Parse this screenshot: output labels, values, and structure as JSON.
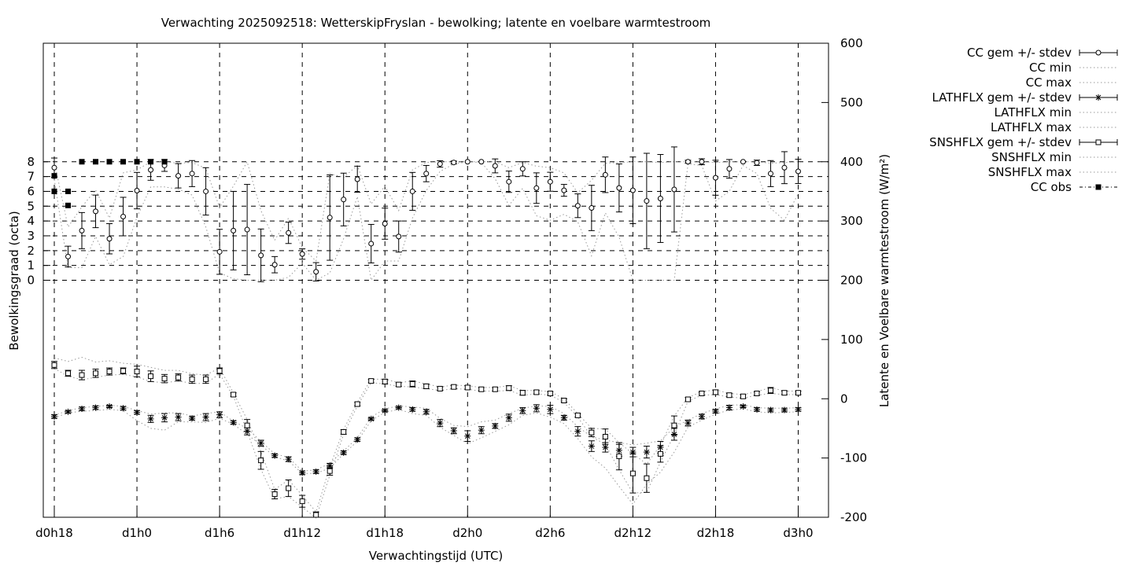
{
  "chart_data": {
    "type": "scatter",
    "title": "Verwachting 2025092518: WetterskipFryslan - bewolking; latente en voelbare warmtestroom",
    "xlabel": "Verwachtingstijd (UTC)",
    "ylabel_left": "Bewolkingsgraad (octa)",
    "ylabel_right": "Latente en Voelbare warmtestroom (W/m²)",
    "x_unit": "hours since d0h00",
    "xlim": [
      17.2,
      74.2
    ],
    "y_left_ticks": [
      0,
      1,
      2,
      3,
      4,
      5,
      6,
      7,
      8
    ],
    "y_right_lim": [
      -200,
      600
    ],
    "y_right_ticks": [
      -200,
      -100,
      0,
      100,
      200,
      300,
      400,
      500,
      600
    ],
    "x_ticks": [
      {
        "x": 18,
        "label": "d0h18"
      },
      {
        "x": 24,
        "label": "d1h0"
      },
      {
        "x": 30,
        "label": "d1h6"
      },
      {
        "x": 36,
        "label": "d1h12"
      },
      {
        "x": 42,
        "label": "d1h18"
      },
      {
        "x": 48,
        "label": "d2h0"
      },
      {
        "x": 54,
        "label": "d2h6"
      },
      {
        "x": 60,
        "label": "d2h12"
      },
      {
        "x": 66,
        "label": "d2h18"
      },
      {
        "x": 72,
        "label": "d3h0"
      }
    ],
    "grid": true,
    "legend_position": "right",
    "legend": [
      "CC gem +/- stdev",
      "CC min",
      "CC max",
      "LATHFLX gem +/- stdev",
      "LATHFLX min",
      "LATHFLX max",
      "SNSHFLX gem +/- stdev",
      "SNSHFLX min",
      "SNSHFLX max",
      "CC obs"
    ],
    "cc_mean": {
      "x": [
        18,
        19,
        20,
        21,
        22,
        23,
        24,
        25,
        26,
        27,
        28,
        29,
        30,
        31,
        32,
        33,
        34,
        35,
        36,
        37,
        38,
        39,
        40,
        41,
        42,
        43,
        44,
        45,
        46,
        47,
        48,
        49,
        50,
        51,
        52,
        53,
        54,
        55,
        56,
        57,
        58,
        59,
        60,
        61,
        62,
        63,
        64,
        65,
        66,
        67,
        68,
        69,
        70,
        71,
        72
      ],
      "y": [
        7.6,
        1.6,
        3.35,
        4.65,
        2.8,
        4.3,
        6.05,
        7.45,
        7.75,
        7.05,
        7.2,
        6.0,
        1.92,
        3.35,
        3.42,
        1.68,
        1.05,
        3.2,
        1.77,
        0.57,
        4.23,
        5.45,
        6.82,
        2.47,
        3.82,
        2.95,
        6.0,
        7.2,
        7.85,
        7.95,
        8.0,
        8.0,
        7.72,
        6.65,
        7.52,
        6.22,
        6.65,
        6.07,
        5.03,
        4.88,
        7.12,
        6.23,
        6.07,
        5.35,
        5.52,
        6.13,
        8.0,
        8.0,
        6.92,
        7.52,
        8.0,
        7.93,
        7.2,
        7.6,
        7.35
      ],
      "err": [
        0.65,
        0.7,
        1.22,
        1.1,
        1.02,
        1.3,
        1.23,
        0.7,
        0.4,
        0.82,
        0.88,
        1.6,
        1.52,
        2.65,
        3.05,
        1.78,
        0.55,
        0.72,
        0.35,
        0.62,
        2.88,
        1.78,
        0.88,
        1.3,
        1.05,
        1.05,
        1.28,
        0.55,
        0.22,
        0.1,
        0.0,
        0.0,
        0.47,
        0.72,
        0.48,
        1.03,
        0.64,
        0.4,
        0.8,
        1.53,
        1.2,
        1.62,
        2.25,
        3.22,
        2.97,
        2.87,
        0.1,
        0.2,
        1.18,
        0.63,
        0.0,
        0.18,
        0.88,
        1.08,
        0.82
      ]
    },
    "cc_min": [
      6.8,
      0.85,
      0.85,
      2.95,
      1.05,
      1.6,
      4.25,
      6.3,
      6.3,
      6.15,
      5.75,
      3.6,
      0.5,
      0.1,
      0.0,
      0.0,
      0.0,
      0.2,
      1.15,
      0.0,
      0.5,
      2.8,
      5.65,
      0.0,
      1.3,
      1.3,
      4.2,
      6.05,
      7.35,
      7.85,
      8.0,
      7.95,
      6.85,
      5.05,
      6.2,
      4.35,
      4.05,
      4.45,
      3.95,
      1.65,
      4.55,
      2.9,
      0.0,
      0.0,
      0.0,
      0.0,
      7.85,
      7.75,
      5.35,
      6.0,
      7.75,
      7.2,
      4.85,
      4.05,
      5.85
    ],
    "cc_max": [
      8.0,
      3.6,
      4.95,
      6.1,
      4.2,
      7.25,
      7.45,
      8.0,
      8.0,
      7.9,
      7.95,
      7.55,
      4.9,
      6.35,
      8.0,
      4.7,
      2.7,
      4.2,
      2.2,
      1.3,
      7.2,
      6.95,
      7.75,
      5.15,
      6.35,
      4.7,
      7.45,
      7.95,
      8.0,
      8.0,
      8.0,
      8.0,
      8.0,
      7.6,
      7.95,
      7.7,
      7.6,
      7.25,
      5.9,
      6.75,
      7.9,
      7.95,
      8.0,
      8.0,
      7.95,
      8.0,
      8.0,
      8.0,
      7.95,
      8.0,
      8.0,
      8.0,
      7.9,
      7.95,
      8.0
    ],
    "cc_obs": {
      "x": [
        18,
        18,
        18,
        19,
        19,
        20,
        21,
        22,
        23,
        24,
        25,
        26
      ],
      "y": [
        7.05,
        6.0,
        6.0,
        6.0,
        5.05,
        8.0,
        8.0,
        8.0,
        8.0,
        8.0,
        8.0,
        8.0
      ]
    },
    "lathflx_mean": {
      "x": [
        18,
        19,
        20,
        21,
        22,
        23,
        24,
        25,
        26,
        27,
        28,
        29,
        30,
        31,
        32,
        33,
        34,
        35,
        36,
        37,
        38,
        39,
        40,
        41,
        42,
        43,
        44,
        45,
        46,
        47,
        48,
        49,
        50,
        51,
        52,
        53,
        54,
        55,
        56,
        57,
        58,
        59,
        60,
        61,
        62,
        63,
        64,
        65,
        66,
        67,
        68,
        69,
        70,
        71,
        72
      ],
      "y": [
        -30,
        -22,
        -17,
        -15,
        -13,
        -16,
        -23,
        -34,
        -32,
        -31,
        -33,
        -31,
        -27,
        -40,
        -55,
        -75,
        -96,
        -102,
        -125,
        -123,
        -113,
        -91,
        -69,
        -34,
        -20,
        -15,
        -18,
        -22,
        -41,
        -54,
        -63,
        -53,
        -46,
        -32,
        -20,
        -16,
        -18,
        -32,
        -55,
        -80,
        -82,
        -87,
        -90,
        -90,
        -82,
        -60,
        -41,
        -30,
        -21,
        -15,
        -13,
        -18,
        -19,
        -19,
        -18
      ],
      "err": [
        3,
        2,
        3,
        3,
        2,
        3,
        3,
        6,
        7,
        6,
        3,
        6,
        5,
        3,
        6,
        5,
        3,
        4,
        3,
        3,
        4,
        3,
        3,
        2,
        2,
        2,
        3,
        4,
        6,
        5,
        9,
        6,
        4,
        6,
        5,
        6,
        7,
        4,
        8,
        9,
        8,
        10,
        8,
        10,
        10,
        10,
        5,
        4,
        3,
        4,
        2,
        3,
        3,
        3,
        3
      ]
    },
    "lathflx_min": [
      -32,
      -24,
      -21,
      -20,
      -18,
      -20,
      -37,
      -50,
      -53,
      -39,
      -39,
      -40,
      -33,
      -43,
      -60,
      -78,
      -98,
      -105,
      -126,
      -126,
      -117,
      -93,
      -72,
      -37,
      -23,
      -18,
      -25,
      -28,
      -48,
      -62,
      -76,
      -66,
      -55,
      -44,
      -28,
      -24,
      -31,
      -42,
      -67,
      -98,
      -117,
      -148,
      -178,
      -144,
      -124,
      -90,
      -48,
      -36,
      -26,
      -19,
      -17,
      -22,
      -24,
      -23,
      -22
    ],
    "lathflx_max": [
      -28,
      -20,
      -15,
      -13,
      -11,
      -13,
      -20,
      -26,
      -24,
      -24,
      -29,
      -25,
      -22,
      -38,
      -50,
      -72,
      -93,
      -99,
      -122,
      -120,
      -109,
      -88,
      -66,
      -31,
      -17,
      -12,
      -14,
      -16,
      -33,
      -45,
      -47,
      -39,
      -36,
      -25,
      -16,
      -12,
      -13,
      -25,
      -47,
      -64,
      -70,
      -74,
      -78,
      -75,
      -71,
      -48,
      -36,
      -25,
      -17,
      -11,
      -10,
      -15,
      -16,
      -16,
      -15
    ],
    "snshflx_mean": {
      "x": [
        18,
        19,
        20,
        21,
        22,
        23,
        24,
        25,
        26,
        27,
        28,
        29,
        30,
        31,
        32,
        33,
        34,
        35,
        36,
        37,
        38,
        39,
        40,
        41,
        42,
        43,
        44,
        45,
        46,
        47,
        48,
        49,
        50,
        51,
        52,
        53,
        54,
        55,
        56,
        57,
        58,
        59,
        60,
        61,
        62,
        63,
        64,
        65,
        66,
        67,
        68,
        69,
        70,
        71,
        72
      ],
      "y": [
        57,
        43,
        40,
        43,
        46,
        47,
        46,
        38,
        34,
        36,
        33,
        33,
        47,
        7,
        -45,
        -104,
        -161,
        -151,
        -173,
        -196,
        -122,
        -56,
        -9,
        30,
        29,
        24,
        25,
        21,
        17,
        20,
        19,
        16,
        16,
        18,
        10,
        11,
        9,
        -3,
        -28,
        -57,
        -64,
        -97,
        -126,
        -134,
        -93,
        -45,
        -1,
        9,
        11,
        6,
        4,
        9,
        14,
        10,
        10
      ],
      "err": [
        6,
        5,
        8,
        7,
        6,
        5,
        9,
        9,
        7,
        6,
        7,
        7,
        5,
        3,
        10,
        15,
        8,
        14,
        10,
        5,
        7,
        4,
        3,
        3,
        4,
        3,
        5,
        4,
        3,
        3,
        3,
        3,
        3,
        4,
        4,
        3,
        3,
        3,
        3,
        7,
        13,
        23,
        33,
        24,
        14,
        16,
        3,
        3,
        4,
        3,
        3,
        3,
        5,
        3,
        3
      ]
    },
    "snshflx_min": [
      51,
      38,
      32,
      36,
      40,
      41,
      37,
      29,
      27,
      30,
      26,
      26,
      42,
      4,
      -55,
      -119,
      -169,
      -165,
      -183,
      -201,
      -129,
      -60,
      -12,
      27,
      25,
      21,
      20,
      17,
      14,
      17,
      16,
      13,
      13,
      14,
      6,
      8,
      6,
      -6,
      -31,
      -64,
      -77,
      -120,
      -159,
      -158,
      -107,
      -61,
      -4,
      6,
      7,
      3,
      1,
      6,
      9,
      7,
      7
    ],
    "snshflx_max": [
      69,
      63,
      70,
      62,
      64,
      60,
      58,
      53,
      48,
      48,
      42,
      40,
      52,
      10,
      -35,
      -89,
      -153,
      -137,
      -163,
      -191,
      -115,
      -52,
      -6,
      33,
      33,
      27,
      30,
      25,
      20,
      23,
      22,
      19,
      19,
      22,
      14,
      14,
      12,
      0,
      -25,
      -50,
      -51,
      -74,
      -93,
      -110,
      -79,
      -29,
      2,
      12,
      15,
      9,
      7,
      12,
      19,
      13,
      13
    ]
  }
}
